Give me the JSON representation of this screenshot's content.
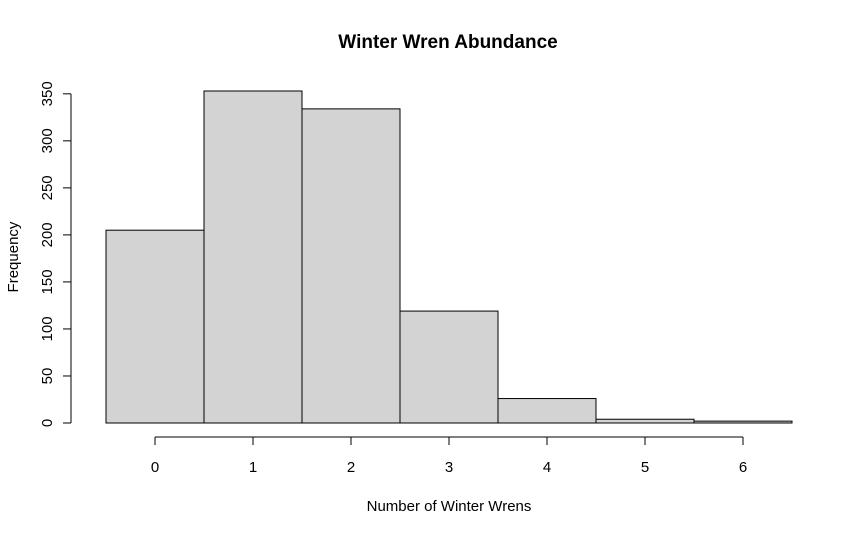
{
  "chart_data": {
    "type": "bar",
    "title": "Winter Wren Abundance",
    "xlabel": "Number of Winter Wrens",
    "ylabel": "Frequency",
    "categories": [
      "0",
      "1",
      "2",
      "3",
      "4",
      "5",
      "6"
    ],
    "values": [
      205,
      353,
      334,
      119,
      26,
      4,
      2
    ],
    "x_ticks": [
      0,
      1,
      2,
      3,
      4,
      5,
      6
    ],
    "y_ticks": [
      0,
      50,
      100,
      150,
      200,
      250,
      300,
      350
    ],
    "xlim": [
      -0.5,
      6.5
    ],
    "ylim": [
      0,
      353
    ],
    "bar_fill": "#d3d3d3",
    "bar_stroke": "#000000",
    "grid": false,
    "legend": "none"
  }
}
